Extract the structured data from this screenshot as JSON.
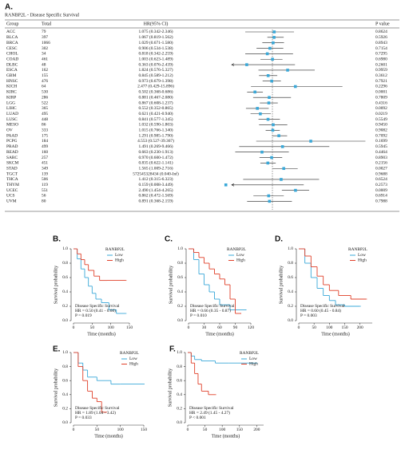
{
  "panel_a": {
    "label": "A.",
    "title": "RANBP2L - Disease Specific Survival",
    "columns": [
      "Group",
      "Total",
      "HR(95% CI)",
      "P value"
    ],
    "forest": {
      "log": true,
      "xlim": [
        0.2,
        50
      ],
      "ref": 1,
      "color": "#3aa8d8"
    },
    "rows": [
      {
        "group": "ACC",
        "total": "79",
        "hr_label": "1.075 (0.342-2.346)",
        "p": "0.8624",
        "hr": 1.075,
        "lo": 0.342,
        "hi": 2.346
      },
      {
        "group": "BLCA",
        "total": "397",
        "hr_label": "1.067 (0.819-1.562)",
        "p": "0.5926",
        "hr": 1.067,
        "lo": 0.819,
        "hi": 1.562
      },
      {
        "group": "BRCA",
        "total": "1066",
        "hr_label": "1.029 (0.671-1.580)",
        "p": "0.8943",
        "hr": 1.029,
        "lo": 0.671,
        "hi": 1.58
      },
      {
        "group": "CESC",
        "total": "302",
        "hr_label": "0.906 (0.534-1.538)",
        "p": "0.7154",
        "hr": 0.906,
        "lo": 0.534,
        "hi": 1.538
      },
      {
        "group": "CHOL",
        "total": "34",
        "hr_label": "0.818 (0.342-2.259)",
        "p": "0.7295",
        "hr": 0.818,
        "lo": 0.342,
        "hi": 2.259
      },
      {
        "group": "COAD",
        "total": "461",
        "hr_label": "1.003 (0.623-1.489)",
        "p": "0.6980",
        "hr": 1.003,
        "lo": 0.623,
        "hi": 1.489
      },
      {
        "group": "DLBC",
        "total": "48",
        "hr_label": "0.363 (0.076-2.439)",
        "p": "0.2601",
        "hr": 0.363,
        "lo": 0.076,
        "hi": 2.439
      },
      {
        "group": "ESCA",
        "total": "162",
        "hr_label": "1.824 (0.576-5.327)",
        "p": "0.9959",
        "hr": 1.824,
        "lo": 0.576,
        "hi": 5.327
      },
      {
        "group": "GBM",
        "total": "155",
        "hr_label": "0.845 (0.589-1.212)",
        "p": "0.3612",
        "hr": 0.845,
        "lo": 0.589,
        "hi": 1.212
      },
      {
        "group": "HNSC",
        "total": "476",
        "hr_label": "0.973 (0.679-1.398)",
        "p": "0.7921",
        "hr": 0.973,
        "lo": 0.679,
        "hi": 1.398
      },
      {
        "group": "KICH",
        "total": "64",
        "hr_label": "2.477 (0.429-15.896)",
        "p": "0.2296",
        "hr": 2.477,
        "lo": 0.429,
        "hi": 15.896
      },
      {
        "group": "KIRC",
        "total": "530",
        "hr_label": "0.502 (0.368-0.686)",
        "p": "0.0001",
        "hr": 0.502,
        "lo": 0.368,
        "hi": 0.686
      },
      {
        "group": "KIRP",
        "total": "286",
        "hr_label": "0.881 (0.467-2.080)",
        "p": "0.7809",
        "hr": 0.881,
        "lo": 0.467,
        "hi": 2.08
      },
      {
        "group": "LGG",
        "total": "522",
        "hr_label": "0.867 (0.608-1.237)",
        "p": "0.4316",
        "hr": 0.867,
        "lo": 0.608,
        "hi": 1.237
      },
      {
        "group": "LIHC",
        "total": "365",
        "hr_label": "0.552 (0.352-0.865)",
        "p": "0.0092",
        "hr": 0.552,
        "lo": 0.352,
        "hi": 0.865
      },
      {
        "group": "LUAD",
        "total": "495",
        "hr_label": "0.621 (0.421-0.940)",
        "p": "0.0219",
        "hr": 0.621,
        "lo": 0.421,
        "hi": 0.94
      },
      {
        "group": "LUSC",
        "total": "448",
        "hr_label": "0.841 (0.577-1.345)",
        "p": "0.5549",
        "hr": 0.841,
        "lo": 0.577,
        "hi": 1.345
      },
      {
        "group": "MESO",
        "total": "86",
        "hr_label": "1.032 (0.590-1.803)",
        "p": "0.9450",
        "hr": 1.032,
        "lo": 0.59,
        "hi": 1.803
      },
      {
        "group": "OV",
        "total": "333",
        "hr_label": "1.015 (0.766-1.340)",
        "p": "0.9082",
        "hr": 1.015,
        "lo": 0.766,
        "hi": 1.34
      },
      {
        "group": "PAAD",
        "total": "175",
        "hr_label": "1.291 (0.985-1.790)",
        "p": "0.7092",
        "hr": 1.291,
        "lo": 0.985,
        "hi": 1.79
      },
      {
        "group": "PCPG",
        "total": "184",
        "hr_label": "4.553 (0.527-39.367)",
        "p": "0.1699",
        "hr": 4.553,
        "lo": 0.527,
        "hi": 39.367
      },
      {
        "group": "PRAD",
        "total": "499",
        "hr_label": "1.491 (0.269-9.466)",
        "p": "0.5945",
        "hr": 1.491,
        "lo": 0.269,
        "hi": 9.466
      },
      {
        "group": "READ",
        "total": "160",
        "hr_label": "0.663 (0.230-1.913)",
        "p": "0.4464",
        "hr": 0.663,
        "lo": 0.23,
        "hi": 1.913
      },
      {
        "group": "SARC",
        "total": "257",
        "hr_label": "0.970 (0.600-1.472)",
        "p": "0.8903",
        "hr": 0.97,
        "lo": 0.6,
        "hi": 1.472
      },
      {
        "group": "SKCM",
        "total": "451",
        "hr_label": "0.835 (0.622-1.141)",
        "p": "0.2156",
        "hr": 0.835,
        "lo": 0.622,
        "hi": 1.141
      },
      {
        "group": "STAD",
        "total": "349",
        "hr_label": "1.565 (1.009-2.716)",
        "p": "0.0027",
        "hr": 1.565,
        "lo": 1.009,
        "hi": 2.716
      },
      {
        "group": "TGCT",
        "total": "139",
        "hr_label": "572545328434 (0.040-Inf)",
        "p": "0.9688",
        "hr": null,
        "lo": null,
        "hi": null
      },
      {
        "group": "THCA",
        "total": "506",
        "hr_label": "1.412 (0.315-6.323)",
        "p": "0.6524",
        "hr": 1.412,
        "lo": 0.315,
        "hi": 6.323
      },
      {
        "group": "THYM",
        "total": "119",
        "hr_label": "0.159 (0.008-3.449)",
        "p": "0.2573",
        "hr": 0.159,
        "lo": 0.008,
        "hi": 3.449
      },
      {
        "group": "UCEC",
        "total": "551",
        "hr_label": "2.490 (1.454-4.265)",
        "p": "0.0009",
        "hr": 2.49,
        "lo": 1.454,
        "hi": 4.265
      },
      {
        "group": "UCS",
        "total": "56",
        "hr_label": "0.862 (0.472-1.569)",
        "p": "0.6914",
        "hr": 0.862,
        "lo": 0.472,
        "hi": 1.569
      },
      {
        "group": "UVM",
        "total": "80",
        "hr_label": "0.891 (0.368-2.159)",
        "p": "0.7988",
        "hr": 0.891,
        "lo": 0.368,
        "hi": 2.159
      }
    ]
  },
  "chart_data": [
    {
      "type": "survival",
      "panel": "B.",
      "xlabel": "Time (months)",
      "ylabel": "Survival probability",
      "legend_title": "RANBP2L",
      "annotations": [
        "Disease Specific Survival",
        "HR = 0.50 (0.41 - 0.60)",
        "P = 0.019"
      ],
      "xlim": [
        0,
        150
      ],
      "xticks": [
        0,
        50,
        100,
        150
      ],
      "ylim": [
        0,
        1
      ],
      "yticks": [
        {
          "value": 0,
          "label": "0.0"
        },
        {
          "value": 0.2,
          "label": "0.2"
        },
        {
          "value": 0.4,
          "label": "0.4"
        },
        {
          "value": 0.6,
          "label": "0.6"
        },
        {
          "value": 0.8,
          "label": "0.8"
        },
        {
          "value": 1,
          "label": "1.0"
        }
      ],
      "series": [
        {
          "name": "Low",
          "color": "#3aa8d8",
          "x": [
            0,
            10,
            20,
            30,
            40,
            50,
            60,
            75,
            95,
            115,
            140
          ],
          "values": [
            1,
            0.86,
            0.72,
            0.6,
            0.48,
            0.38,
            0.3,
            0.25,
            0.15,
            0.1,
            0.1
          ]
        },
        {
          "name": "High",
          "color": "#e0402a",
          "x": [
            0,
            10,
            20,
            30,
            40,
            55,
            70,
            90,
            140
          ],
          "values": [
            1,
            0.93,
            0.85,
            0.78,
            0.7,
            0.62,
            0.56,
            0.56,
            0.56
          ]
        }
      ]
    },
    {
      "type": "survival",
      "panel": "C.",
      "xlabel": "Time (months)",
      "ylabel": "Survival probability",
      "legend_title": "RANBP2L",
      "annotations": [
        "Disease Specific Survival",
        "HR = 0.66 (0.35 - 0.87)",
        "P = 0.010"
      ],
      "xlim": [
        0,
        120
      ],
      "xticks": [
        0,
        30,
        60,
        90,
        120
      ],
      "ylim": [
        0,
        1
      ],
      "yticks": [
        {
          "value": 0,
          "label": "0.0"
        },
        {
          "value": 0.2,
          "label": "0.2"
        },
        {
          "value": 0.4,
          "label": "0.4"
        },
        {
          "value": 0.6,
          "label": "0.6"
        },
        {
          "value": 0.8,
          "label": "0.8"
        },
        {
          "value": 1,
          "label": "1.0"
        }
      ],
      "series": [
        {
          "name": "Low",
          "color": "#3aa8d8",
          "x": [
            0,
            10,
            20,
            30,
            40,
            50,
            60,
            80,
            100,
            110
          ],
          "values": [
            1,
            0.85,
            0.65,
            0.5,
            0.4,
            0.3,
            0.22,
            0.15,
            0.15,
            0.15
          ]
        },
        {
          "name": "High",
          "color": "#e0402a",
          "x": [
            0,
            10,
            20,
            30,
            40,
            50,
            60,
            70,
            80,
            90,
            100
          ],
          "values": [
            1,
            0.95,
            0.88,
            0.8,
            0.72,
            0.65,
            0.58,
            0.5,
            0.3,
            0.1,
            0.1
          ]
        }
      ]
    },
    {
      "type": "survival",
      "panel": "D.",
      "xlabel": "Time (months)",
      "ylabel": "Survival probability",
      "legend_title": "RANBP2L",
      "annotations": [
        "Disease Specific Survival",
        "HR = 0.60 (0.45 - 0.84)",
        "P = 0.003"
      ],
      "xlim": [
        0,
        240
      ],
      "xticks": [
        0,
        50,
        100,
        150,
        200
      ],
      "ylim": [
        0,
        1
      ],
      "yticks": [
        {
          "value": 0,
          "label": "0.0"
        },
        {
          "value": 0.2,
          "label": "0.2"
        },
        {
          "value": 0.4,
          "label": "0.4"
        },
        {
          "value": 0.6,
          "label": "0.6"
        },
        {
          "value": 0.8,
          "label": "0.8"
        },
        {
          "value": 1,
          "label": "1.0"
        }
      ],
      "series": [
        {
          "name": "Low",
          "color": "#3aa8d8",
          "x": [
            0,
            20,
            40,
            60,
            80,
            100,
            120,
            150,
            200
          ],
          "values": [
            1,
            0.8,
            0.6,
            0.45,
            0.35,
            0.28,
            0.22,
            0.2,
            0.2
          ]
        },
        {
          "name": "High",
          "color": "#e0402a",
          "x": [
            0,
            20,
            40,
            60,
            80,
            100,
            130,
            170,
            220
          ],
          "values": [
            1,
            0.9,
            0.75,
            0.62,
            0.5,
            0.42,
            0.35,
            0.3,
            0.3
          ]
        }
      ]
    },
    {
      "type": "survival",
      "panel": "E.",
      "xlabel": "Time (months)",
      "ylabel": "Survival probability",
      "legend_title": "RANBP2L",
      "annotations": [
        "Disease Specific Survival",
        "HR = 1.89 (1.04 - 3.42)",
        "P = 0.033"
      ],
      "xlim": [
        0,
        150
      ],
      "xticks": [
        0,
        50,
        100,
        150
      ],
      "ylim": [
        0,
        1
      ],
      "yticks": [
        {
          "value": 0,
          "label": "0.0"
        },
        {
          "value": 0.2,
          "label": "0.2"
        },
        {
          "value": 0.4,
          "label": "0.4"
        },
        {
          "value": 0.6,
          "label": "0.6"
        },
        {
          "value": 0.8,
          "label": "0.8"
        },
        {
          "value": 1,
          "label": "1.0"
        }
      ],
      "series": [
        {
          "name": "Low",
          "color": "#3aa8d8",
          "x": [
            0,
            10,
            20,
            30,
            50,
            80,
            100,
            150
          ],
          "values": [
            1,
            0.85,
            0.75,
            0.65,
            0.6,
            0.55,
            0.55,
            0.55
          ]
        },
        {
          "name": "High",
          "color": "#e0402a",
          "x": [
            0,
            10,
            20,
            30,
            40,
            50,
            60,
            70
          ],
          "values": [
            1,
            0.8,
            0.6,
            0.45,
            0.35,
            0.3,
            0.15,
            0.15
          ]
        }
      ]
    },
    {
      "type": "survival",
      "panel": "F.",
      "xlabel": "Time (months)",
      "ylabel": "Survival probability",
      "legend_title": "RANBP2L",
      "annotations": [
        "Disease Specific Survival",
        "HR = 2.49 (1.45 - 4.27)",
        "P < 0.001"
      ],
      "xlim": [
        0,
        220
      ],
      "xticks": [
        0,
        50,
        100,
        150,
        200
      ],
      "ylim": [
        0,
        1
      ],
      "yticks": [
        {
          "value": 0,
          "label": "0.0"
        },
        {
          "value": 0.2,
          "label": "0.2"
        },
        {
          "value": 0.4,
          "label": "0.4"
        },
        {
          "value": 0.6,
          "label": "0.6"
        },
        {
          "value": 0.8,
          "label": "0.8"
        },
        {
          "value": 1,
          "label": "1.0"
        }
      ],
      "series": [
        {
          "name": "Low",
          "color": "#3aa8d8",
          "x": [
            0,
            10,
            20,
            40,
            80,
            120,
            200
          ],
          "values": [
            1,
            0.95,
            0.9,
            0.88,
            0.85,
            0.85,
            0.85
          ]
        },
        {
          "name": "High",
          "color": "#e0402a",
          "x": [
            0,
            10,
            20,
            30,
            40,
            60,
            80
          ],
          "values": [
            1,
            0.85,
            0.7,
            0.55,
            0.45,
            0.4,
            0.4
          ]
        }
      ]
    }
  ]
}
